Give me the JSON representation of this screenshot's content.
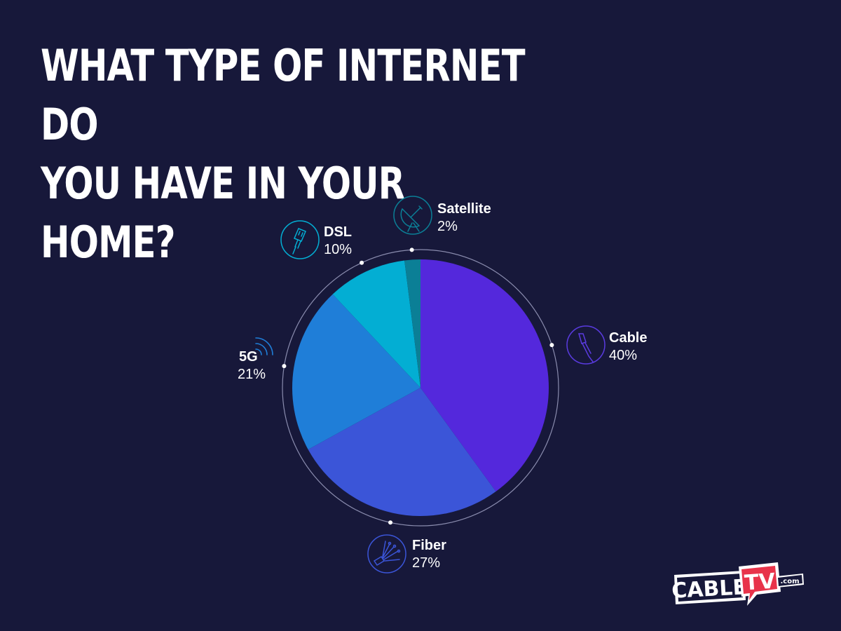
{
  "title_lines": [
    "WHAT TYPE OF INTERNET DO",
    "YOU HAVE IN YOUR HOME?"
  ],
  "chart_data": {
    "type": "pie",
    "title": "WHAT TYPE OF INTERNET DO YOU HAVE IN YOUR HOME?",
    "slices": [
      {
        "label": "Cable",
        "value": 40,
        "display": "40%",
        "color": "#5428dc",
        "icon": "cable-plug-icon"
      },
      {
        "label": "Fiber",
        "value": 27,
        "display": "27%",
        "color": "#3b55d8",
        "icon": "fiber-optic-icon"
      },
      {
        "label": "5G",
        "value": 21,
        "display": "21%",
        "color": "#1f7ed8",
        "icon": "wireless-signal-icon"
      },
      {
        "label": "DSL",
        "value": 10,
        "display": "10%",
        "color": "#03aed3",
        "icon": "ethernet-plug-icon"
      },
      {
        "label": "Satellite",
        "value": 2,
        "display": "2%",
        "color": "#0b7f96",
        "icon": "satellite-dish-icon"
      }
    ]
  },
  "logo": {
    "main": "CABLE",
    "highlight": "TV",
    "suffix": ".com"
  },
  "colors": {
    "background": "#17183a",
    "ring": "#8a8cae",
    "logo_red": "#e8334a"
  }
}
